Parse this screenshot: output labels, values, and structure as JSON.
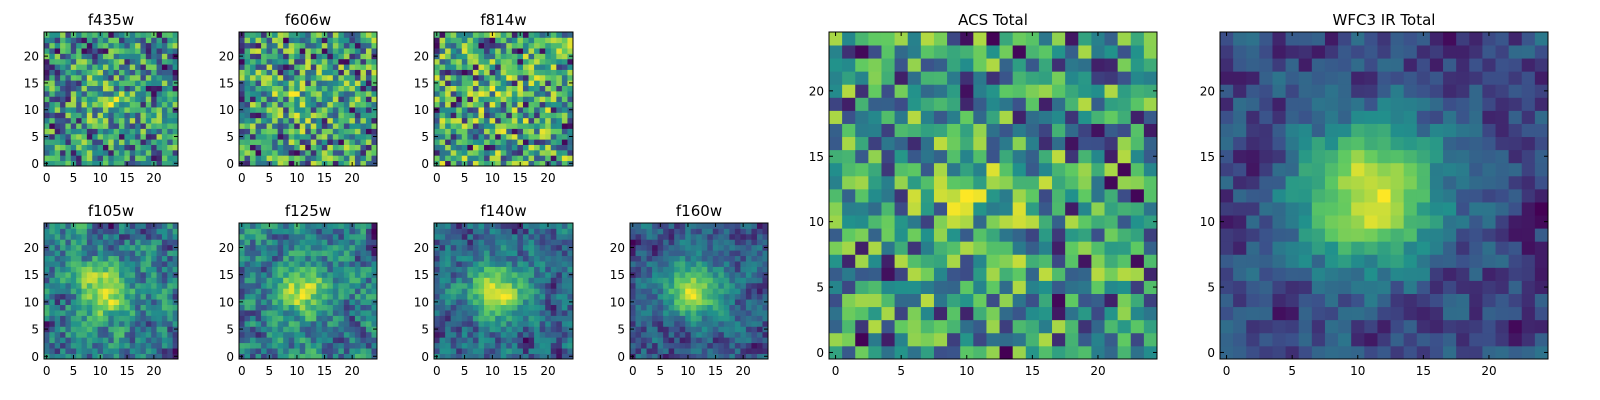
{
  "figure": {
    "description": "Grid of pixel-intensity heatmaps (25x25 cutouts) per HST filter plus summed totals",
    "colormap": "viridis",
    "colormap_stops": [
      "#440154",
      "#3b528b",
      "#21918c",
      "#5ec962",
      "#fde725"
    ]
  },
  "chart_data": [
    {
      "type": "heatmap",
      "title": "f435w",
      "grid_size": 25,
      "xlim": [
        0,
        24
      ],
      "ylim": [
        0,
        24
      ],
      "xticks": [
        0,
        5,
        10,
        15,
        20
      ],
      "yticks": [
        0,
        5,
        10,
        15,
        20
      ],
      "texture": "mostly uniform noise with faint central brightening",
      "seed": 11,
      "noise": 0.85,
      "blob_strength": 0.15
    },
    {
      "type": "heatmap",
      "title": "f606w",
      "grid_size": 25,
      "xlim": [
        0,
        24
      ],
      "ylim": [
        0,
        24
      ],
      "xticks": [
        0,
        5,
        10,
        15,
        20
      ],
      "yticks": [
        0,
        5,
        10,
        15,
        20
      ],
      "texture": "uniform noise",
      "seed": 23,
      "noise": 0.9,
      "blob_strength": 0.1
    },
    {
      "type": "heatmap",
      "title": "f814w",
      "grid_size": 25,
      "xlim": [
        0,
        24
      ],
      "ylim": [
        0,
        24
      ],
      "xticks": [
        0,
        5,
        10,
        15,
        20
      ],
      "yticks": [
        0,
        5,
        10,
        15,
        20
      ],
      "texture": "uniform noise",
      "seed": 37,
      "noise": 0.95,
      "blob_strength": 0.05
    },
    {
      "type": "heatmap",
      "title": "f105w",
      "grid_size": 25,
      "xlim": [
        0,
        24
      ],
      "ylim": [
        0,
        24
      ],
      "xticks": [
        0,
        5,
        10,
        15,
        20
      ],
      "yticks": [
        0,
        5,
        10,
        15,
        20
      ],
      "texture": "smooth correlated noise with central source",
      "seed": 41,
      "noise": 0.7,
      "blob_strength": 0.35
    },
    {
      "type": "heatmap",
      "title": "f125w",
      "grid_size": 25,
      "xlim": [
        0,
        24
      ],
      "ylim": [
        0,
        24
      ],
      "xticks": [
        0,
        5,
        10,
        15,
        20
      ],
      "yticks": [
        0,
        5,
        10,
        15,
        20
      ],
      "texture": "smooth correlated noise",
      "seed": 53,
      "noise": 0.75,
      "blob_strength": 0.3
    },
    {
      "type": "heatmap",
      "title": "f140w",
      "grid_size": 25,
      "xlim": [
        0,
        24
      ],
      "ylim": [
        0,
        24
      ],
      "xticks": [
        0,
        5,
        10,
        15,
        20
      ],
      "yticks": [
        0,
        5,
        10,
        15,
        20
      ],
      "texture": "smooth correlated noise with central source",
      "seed": 67,
      "noise": 0.65,
      "blob_strength": 0.45
    },
    {
      "type": "heatmap",
      "title": "f160w",
      "grid_size": 25,
      "xlim": [
        0,
        24
      ],
      "ylim": [
        0,
        24
      ],
      "xticks": [
        0,
        5,
        10,
        15,
        20
      ],
      "yticks": [
        0,
        5,
        10,
        15,
        20
      ],
      "texture": "bright central source on smooth background",
      "seed": 79,
      "noise": 0.6,
      "blob_strength": 0.55
    },
    {
      "type": "heatmap",
      "title": "ACS Total",
      "grid_size": 25,
      "xlim": [
        0,
        24
      ],
      "ylim": [
        0,
        24
      ],
      "xticks": [
        0,
        5,
        10,
        15,
        20
      ],
      "yticks": [
        0,
        5,
        10,
        15,
        20
      ],
      "texture": "noise dominated sum of optical bands",
      "seed": 97,
      "noise": 0.85,
      "blob_strength": 0.15
    },
    {
      "type": "heatmap",
      "title": "WFC3 IR Total",
      "grid_size": 25,
      "xlim": [
        0,
        24
      ],
      "ylim": [
        0,
        24
      ],
      "xticks": [
        0,
        5,
        10,
        15,
        20
      ],
      "yticks": [
        0,
        5,
        10,
        15,
        20
      ],
      "texture": "bright extended central source near (11,12)",
      "seed": 113,
      "noise": 0.5,
      "blob_strength": 0.7
    }
  ]
}
